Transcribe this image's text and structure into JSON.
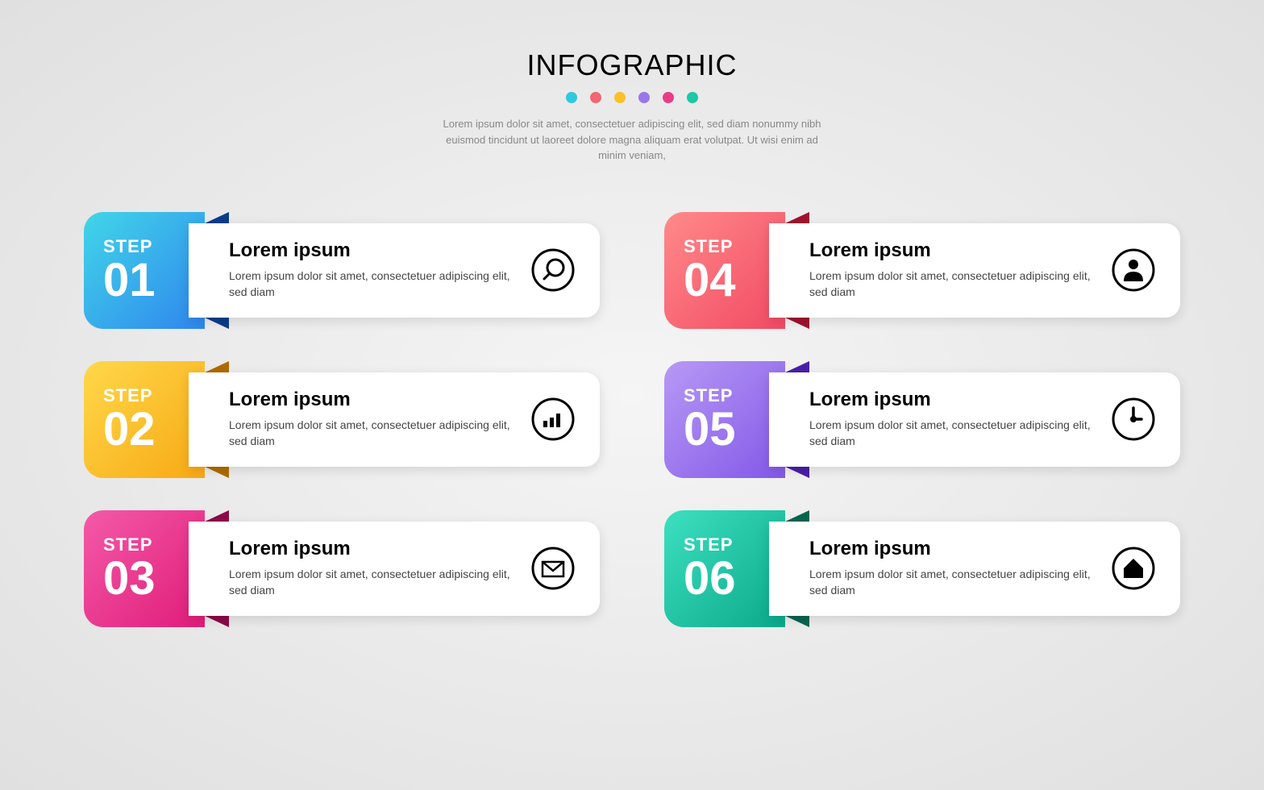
{
  "type": "infographic",
  "layout": {
    "columns": 2,
    "rows": 3,
    "background": "radial-gradient(#f5f5f5, #e0e0e0)"
  },
  "header": {
    "title": "INFOGRAPHIC",
    "title_fontsize": 36,
    "title_color": "#000000",
    "dot_colors": [
      "#2fc9e0",
      "#f36673",
      "#f9c02a",
      "#9877ea",
      "#e93d8a",
      "#1ec8a5"
    ],
    "subtitle": "Lorem ipsum dolor sit amet, consectetuer adipiscing elit, sed diam nonummy nibh euismod tincidunt ut laoreet dolore magna aliquam erat volutpat. Ut wisi enim ad minim veniam,",
    "subtitle_fontsize": 13,
    "subtitle_color": "#888888"
  },
  "steps": [
    {
      "label": "STEP",
      "number": "01",
      "gradient_from": "#41d6e8",
      "gradient_to": "#2f86ee",
      "fold_color": "#0a3d8b",
      "title": "Lorem ipsum",
      "desc": "Lorem ipsum dolor sit amet, consectetuer adipiscing elit, sed diam",
      "icon": "search"
    },
    {
      "label": "STEP",
      "number": "04",
      "gradient_from": "#ff8a8a",
      "gradient_to": "#f24a63",
      "fold_color": "#a0122e",
      "title": "Lorem ipsum",
      "desc": "Lorem ipsum dolor sit amet, consectetuer adipiscing elit, sed diam",
      "icon": "user"
    },
    {
      "label": "STEP",
      "number": "02",
      "gradient_from": "#ffd84a",
      "gradient_to": "#f7a914",
      "fold_color": "#b06b00",
      "title": "Lorem ipsum",
      "desc": "Lorem ipsum dolor sit amet, consectetuer adipiscing elit, sed diam",
      "icon": "chart"
    },
    {
      "label": "STEP",
      "number": "05",
      "gradient_from": "#b799f5",
      "gradient_to": "#8358e8",
      "fold_color": "#4a1fa8",
      "title": "Lorem ipsum",
      "desc": "Lorem ipsum dolor sit amet, consectetuer adipiscing elit, sed diam",
      "icon": "clock"
    },
    {
      "label": "STEP",
      "number": "03",
      "gradient_from": "#f45aa8",
      "gradient_to": "#e01c78",
      "fold_color": "#8c0a48",
      "title": "Lorem ipsum",
      "desc": "Lorem ipsum dolor sit amet, consectetuer adipiscing elit, sed diam",
      "icon": "mail"
    },
    {
      "label": "STEP",
      "number": "06",
      "gradient_from": "#3de0c0",
      "gradient_to": "#0aa98a",
      "fold_color": "#05664f",
      "title": "Lorem ipsum",
      "desc": "Lorem ipsum dolor sit amet, consectetuer adipiscing elit, sed diam",
      "icon": "home"
    }
  ],
  "card": {
    "background": "#ffffff",
    "title_fontsize": 24,
    "title_color": "#000000",
    "desc_fontsize": 14,
    "desc_color": "#444444",
    "icon_stroke": "#000000",
    "border_radius": 18
  }
}
